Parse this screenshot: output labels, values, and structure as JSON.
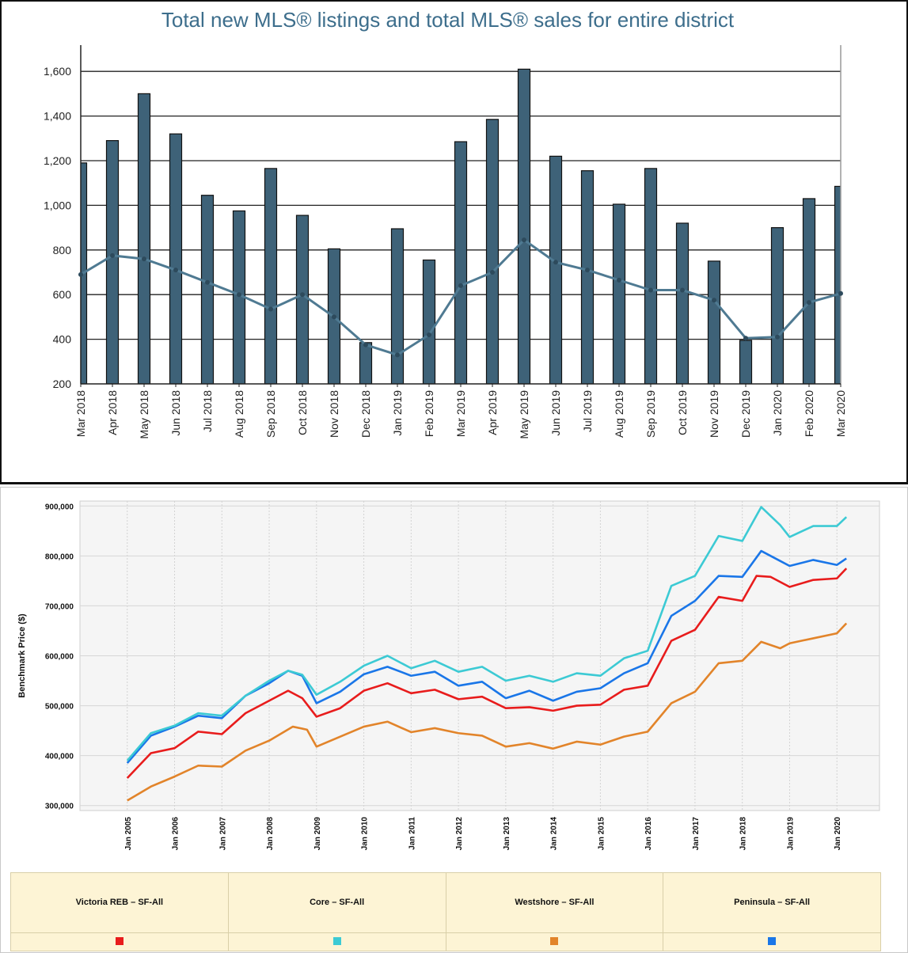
{
  "chart_data": [
    {
      "type": "bar",
      "title": "Total new MLS® listings and total MLS® sales for entire district",
      "categories": [
        "Mar 2018",
        "Apr 2018",
        "May 2018",
        "Jun 2018",
        "Jul 2018",
        "Aug 2018",
        "Sep 2018",
        "Oct 2018",
        "Nov 2018",
        "Dec 2018",
        "Jan 2019",
        "Feb 2019",
        "Mar 2019",
        "Apr 2019",
        "May 2019",
        "Jun 2019",
        "Jul 2019",
        "Aug 2019",
        "Sep 2019",
        "Oct 2019",
        "Nov 2019",
        "Dec 2019",
        "Jan 2020",
        "Feb 2020",
        "Mar 2020"
      ],
      "series": [
        {
          "type": "bar",
          "values": [
            1190,
            1290,
            1500,
            1320,
            1045,
            975,
            1165,
            955,
            805,
            385,
            895,
            755,
            1285,
            1385,
            1610,
            1220,
            1155,
            1005,
            1165,
            920,
            750,
            395,
            900,
            1030,
            1085
          ]
        },
        {
          "type": "line",
          "values": [
            690,
            775,
            760,
            710,
            655,
            600,
            535,
            600,
            500,
            375,
            330,
            420,
            640,
            700,
            845,
            745,
            710,
            665,
            620,
            620,
            575,
            405,
            410,
            565,
            605
          ]
        }
      ],
      "ylim": [
        200,
        1700
      ],
      "yticks": [
        200,
        400,
        600,
        800,
        1000,
        1200,
        1400,
        1600
      ],
      "ytick_labels": [
        "200",
        "400",
        "600",
        "800",
        "1,000",
        "1,200",
        "1,400",
        "1,600"
      ],
      "grid": true,
      "colors": {
        "bar": "#3e6278",
        "line": "#4f7a92",
        "title": "#3d6e8c"
      }
    },
    {
      "type": "line",
      "ylabel": "Benchmark Price ($)",
      "x_tick_labels": [
        "Jan 2005",
        "Jan 2006",
        "Jan 2007",
        "Jan 2008",
        "Jan 2009",
        "Jan 2010",
        "Jan 2011",
        "Jan 2012",
        "Jan 2013",
        "Jan 2014",
        "Jan 2015",
        "Jan 2016",
        "Jan 2017",
        "Jan 2018",
        "Jan 2019",
        "Jan 2020"
      ],
      "x_years": [
        2005,
        2006,
        2007,
        2008,
        2009,
        2010,
        2011,
        2012,
        2013,
        2014,
        2015,
        2016,
        2017,
        2018,
        2019,
        2020
      ],
      "xlim": [
        2004.0,
        2020.9
      ],
      "ylim": [
        290000,
        910000
      ],
      "yticks": [
        300000,
        400000,
        500000,
        600000,
        700000,
        800000,
        900000
      ],
      "ytick_labels": [
        "300,000",
        "400,000",
        "500,000",
        "600,000",
        "700,000",
        "800,000",
        "900,000"
      ],
      "grid": true,
      "legend_placement": "bottom",
      "series": [
        {
          "name": "Victoria REB – SF-All",
          "color": "#e81c1c",
          "x": [
            2005,
            2005.5,
            2006,
            2006.5,
            2007,
            2007.5,
            2008,
            2008.4,
            2008.7,
            2009,
            2009.5,
            2010,
            2010.5,
            2011,
            2011.5,
            2012,
            2012.5,
            2013,
            2013.5,
            2014,
            2014.5,
            2015,
            2015.5,
            2016,
            2016.5,
            2017,
            2017.5,
            2018,
            2018.3,
            2018.6,
            2019,
            2019.5,
            2020,
            2020.2
          ],
          "y": [
            355000,
            405000,
            415000,
            448000,
            443000,
            485000,
            510000,
            530000,
            515000,
            478000,
            495000,
            530000,
            545000,
            525000,
            532000,
            513000,
            518000,
            495000,
            497000,
            490000,
            500000,
            502000,
            532000,
            540000,
            630000,
            652000,
            718000,
            710000,
            760000,
            758000,
            738000,
            752000,
            755000,
            775000
          ]
        },
        {
          "name": "Core – SF-All",
          "color": "#3ccad4",
          "x": [
            2005,
            2005.5,
            2006,
            2006.5,
            2007,
            2007.5,
            2008,
            2008.4,
            2008.7,
            2009,
            2009.5,
            2010,
            2010.5,
            2011,
            2011.5,
            2012,
            2012.5,
            2013,
            2013.5,
            2014,
            2014.5,
            2015,
            2015.5,
            2016,
            2016.5,
            2017,
            2017.5,
            2018,
            2018.4,
            2018.8,
            2019,
            2019.5,
            2020,
            2020.2
          ],
          "y": [
            390000,
            445000,
            460000,
            485000,
            480000,
            520000,
            550000,
            570000,
            562000,
            522000,
            548000,
            580000,
            600000,
            575000,
            590000,
            568000,
            578000,
            550000,
            560000,
            548000,
            565000,
            560000,
            595000,
            610000,
            740000,
            760000,
            840000,
            830000,
            898000,
            862000,
            838000,
            860000,
            860000,
            878000
          ]
        },
        {
          "name": "Westshore – SF-All",
          "color": "#e2842a",
          "x": [
            2005,
            2005.5,
            2006,
            2006.5,
            2007,
            2007.5,
            2008,
            2008.5,
            2008.8,
            2009,
            2009.5,
            2010,
            2010.5,
            2011,
            2011.5,
            2012,
            2012.5,
            2013,
            2013.5,
            2014,
            2014.5,
            2015,
            2015.5,
            2016,
            2016.5,
            2017,
            2017.5,
            2018,
            2018.4,
            2018.8,
            2019,
            2019.5,
            2020,
            2020.2
          ],
          "y": [
            310000,
            338000,
            358000,
            380000,
            378000,
            410000,
            430000,
            458000,
            452000,
            418000,
            438000,
            458000,
            468000,
            447000,
            455000,
            445000,
            440000,
            418000,
            425000,
            414000,
            428000,
            422000,
            438000,
            448000,
            505000,
            528000,
            585000,
            590000,
            628000,
            615000,
            625000,
            635000,
            645000,
            665000
          ]
        },
        {
          "name": "Peninsula – SF-All",
          "color": "#1a76e8",
          "x": [
            2005,
            2005.5,
            2006,
            2006.5,
            2007,
            2007.5,
            2008,
            2008.4,
            2008.7,
            2009,
            2009.5,
            2010,
            2010.5,
            2011,
            2011.5,
            2012,
            2012.5,
            2013,
            2013.5,
            2014,
            2014.5,
            2015,
            2015.5,
            2016,
            2016.5,
            2017,
            2017.5,
            2018,
            2018.4,
            2018.8,
            2019,
            2019.5,
            2020,
            2020.2
          ],
          "y": [
            385000,
            440000,
            458000,
            480000,
            475000,
            520000,
            545000,
            570000,
            560000,
            505000,
            528000,
            563000,
            578000,
            560000,
            568000,
            540000,
            548000,
            515000,
            530000,
            510000,
            528000,
            535000,
            565000,
            585000,
            680000,
            710000,
            760000,
            758000,
            810000,
            790000,
            780000,
            792000,
            782000,
            795000
          ]
        }
      ]
    }
  ]
}
